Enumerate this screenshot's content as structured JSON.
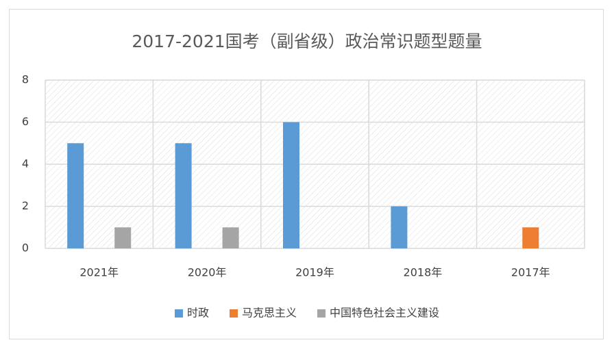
{
  "chart_data": {
    "type": "bar",
    "title": "2017-2021国考（副省级）政治常识题型题量",
    "categories": [
      "2021年",
      "2020年",
      "2019年",
      "2018年",
      "2017年"
    ],
    "series": [
      {
        "name": "时政",
        "color": "#5b9bd5",
        "values": [
          5,
          5,
          6,
          2,
          0
        ]
      },
      {
        "name": "马克思主义",
        "color": "#ed7d31",
        "values": [
          0,
          0,
          0,
          0,
          1
        ]
      },
      {
        "name": "中国特色社会主义建设",
        "color": "#a5a5a5",
        "values": [
          1,
          1,
          0,
          0,
          0
        ]
      }
    ],
    "ylim": [
      0,
      8
    ],
    "yticks": [
      0,
      2,
      4,
      6,
      8
    ],
    "grid": true,
    "legend": "bottom"
  }
}
